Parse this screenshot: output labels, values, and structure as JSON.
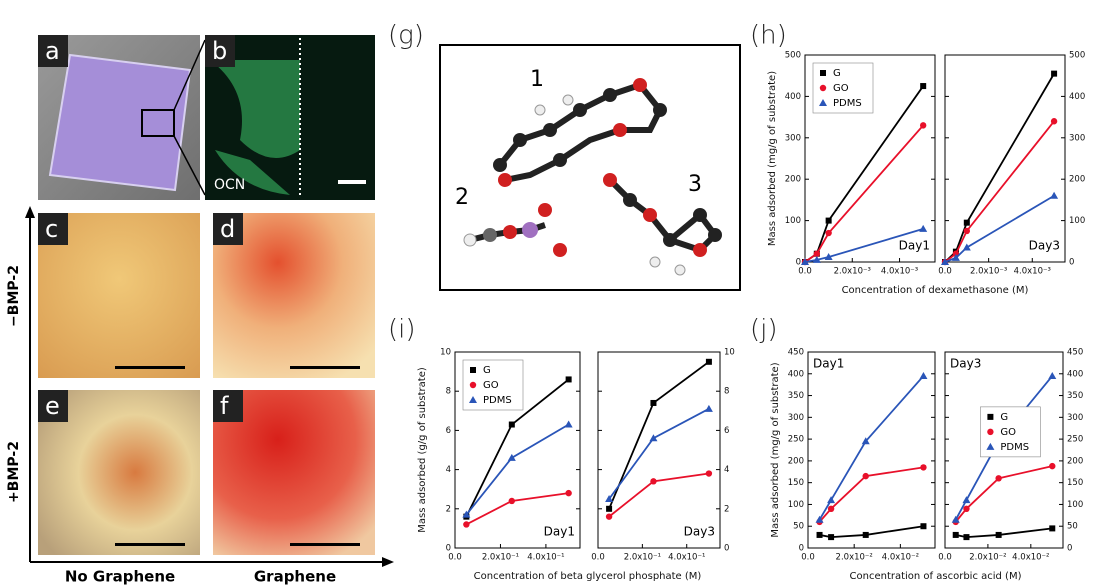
{
  "photos": {
    "labels": [
      "a",
      "b",
      "c",
      "d",
      "e",
      "f"
    ],
    "ocn": "OCN",
    "row_labels": [
      "−BMP-2",
      "+BMP-2"
    ],
    "col_labels": [
      "No Graphene",
      "Graphene"
    ]
  },
  "molecules": {
    "panel": "(g)",
    "labels": [
      "1",
      "2",
      "3"
    ]
  },
  "chart_data": [
    {
      "type": "line",
      "panel": "(h)",
      "ylabel": "Mass adsorbed (mg/g of substrate)",
      "xlabel": "Concentration of dexamethasone (M)",
      "x": [
        0,
        0.0005,
        0.001,
        0.005
      ],
      "xlim": [
        0,
        0.0055
      ],
      "xticks": [
        {
          "value": 0,
          "label": "0.0"
        },
        {
          "value": 0.002,
          "label": "2.0x10⁻³"
        },
        {
          "value": 0.004,
          "label": "4.0x10⁻³"
        }
      ],
      "ylim": [
        0,
        500
      ],
      "yticks": [
        0,
        100,
        200,
        300,
        400,
        500
      ],
      "legend": "upper left",
      "legend_subplot": 0,
      "annotation_corner": "lower right",
      "subplots": [
        {
          "annotation": "Day1",
          "series": [
            {
              "name": "G",
              "color": "#000000",
              "marker": "square",
              "values": [
                0,
                20,
                100,
                425
              ]
            },
            {
              "name": "GO",
              "color": "#e8102a",
              "marker": "circle",
              "values": [
                0,
                20,
                70,
                330
              ]
            },
            {
              "name": "PDMS",
              "color": "#2a55b8",
              "marker": "triangle",
              "values": [
                0,
                5,
                12,
                80
              ]
            }
          ]
        },
        {
          "annotation": "Day3",
          "series": [
            {
              "name": "G",
              "color": "#000000",
              "marker": "square",
              "values": [
                0,
                25,
                95,
                455
              ]
            },
            {
              "name": "GO",
              "color": "#e8102a",
              "marker": "circle",
              "values": [
                0,
                20,
                75,
                340
              ]
            },
            {
              "name": "PDMS",
              "color": "#2a55b8",
              "marker": "triangle",
              "values": [
                0,
                10,
                35,
                160
              ]
            }
          ]
        }
      ]
    },
    {
      "type": "line",
      "panel": "(i)",
      "ylabel": "Mass adsorbed (g/g of substrate)",
      "xlabel": "Concentration of beta glycerol phosphate (M)",
      "x": [
        0.05,
        0.25,
        0.5
      ],
      "xlim": [
        0,
        0.55
      ],
      "xticks": [
        {
          "value": 0,
          "label": "0.0"
        },
        {
          "value": 0.2,
          "label": "2.0x10⁻¹"
        },
        {
          "value": 0.4,
          "label": "4.0x10⁻¹"
        }
      ],
      "ylim": [
        0,
        10
      ],
      "yticks": [
        0,
        2,
        4,
        6,
        8,
        10
      ],
      "legend": "upper left",
      "legend_subplot": 0,
      "annotation_corner": "lower right",
      "subplots": [
        {
          "annotation": "Day1",
          "series": [
            {
              "name": "G",
              "color": "#000000",
              "marker": "square",
              "values": [
                1.6,
                6.3,
                8.6
              ]
            },
            {
              "name": "GO",
              "color": "#e8102a",
              "marker": "circle",
              "values": [
                1.2,
                2.4,
                2.8
              ]
            },
            {
              "name": "PDMS",
              "color": "#2a55b8",
              "marker": "triangle",
              "values": [
                1.7,
                4.6,
                6.3
              ]
            }
          ]
        },
        {
          "annotation": "Day3",
          "series": [
            {
              "name": "G",
              "color": "#000000",
              "marker": "square",
              "values": [
                2.0,
                7.4,
                9.5
              ]
            },
            {
              "name": "GO",
              "color": "#e8102a",
              "marker": "circle",
              "values": [
                1.6,
                3.4,
                3.8
              ]
            },
            {
              "name": "PDMS",
              "color": "#2a55b8",
              "marker": "triangle",
              "values": [
                2.5,
                5.6,
                7.1
              ]
            }
          ]
        }
      ]
    },
    {
      "type": "line",
      "panel": "(j)",
      "ylabel": "Mass adsorbed (mg/g of substrate)",
      "xlabel": "Concentration of ascorbic acid (M)",
      "x": [
        0.005,
        0.01,
        0.025,
        0.05
      ],
      "xlim": [
        0,
        0.055
      ],
      "xticks": [
        {
          "value": 0,
          "label": "0.0"
        },
        {
          "value": 0.02,
          "label": "2.0x10⁻²"
        },
        {
          "value": 0.04,
          "label": "4.0x10⁻²"
        }
      ],
      "ylim": [
        0,
        450
      ],
      "yticks": [
        0,
        50,
        100,
        150,
        200,
        250,
        300,
        350,
        400,
        450
      ],
      "legend": "center",
      "legend_subplot": 1,
      "annotation_corner": "upper left",
      "subplots": [
        {
          "annotation": "Day1",
          "series": [
            {
              "name": "G",
              "color": "#000000",
              "marker": "square",
              "values": [
                30,
                25,
                30,
                50
              ]
            },
            {
              "name": "GO",
              "color": "#e8102a",
              "marker": "circle",
              "values": [
                60,
                90,
                165,
                185
              ]
            },
            {
              "name": "PDMS",
              "color": "#2a55b8",
              "marker": "triangle",
              "values": [
                65,
                110,
                245,
                395
              ]
            }
          ]
        },
        {
          "annotation": "Day3",
          "series": [
            {
              "name": "G",
              "color": "#000000",
              "marker": "square",
              "values": [
                30,
                25,
                30,
                45
              ]
            },
            {
              "name": "GO",
              "color": "#e8102a",
              "marker": "circle",
              "values": [
                60,
                90,
                160,
                188
              ]
            },
            {
              "name": "PDMS",
              "color": "#2a55b8",
              "marker": "triangle",
              "values": [
                65,
                110,
                245,
                395
              ]
            }
          ]
        }
      ]
    }
  ]
}
